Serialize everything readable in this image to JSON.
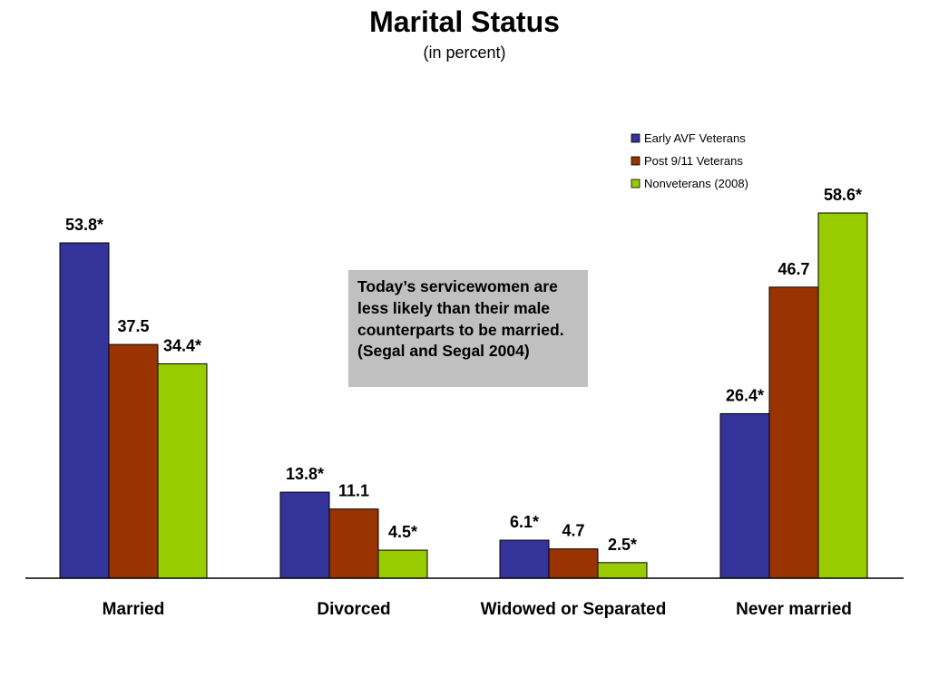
{
  "title": "Marital Status",
  "subtitle": "(in percent)",
  "callout": "Today’s servicewomen are less likely than their male counterparts to be married. (Segal and Segal 2004)",
  "chart_data": {
    "type": "bar",
    "categories": [
      "Married",
      "Divorced",
      "Widowed or Separated",
      "Never married"
    ],
    "series": [
      {
        "name": "Early AVF Veterans",
        "color": "#333399",
        "values": [
          53.8,
          13.8,
          6.1,
          26.4
        ],
        "labels": [
          "53.8*",
          "13.8*",
          "6.1*",
          "26.4*"
        ]
      },
      {
        "name": "Post 9/11 Veterans",
        "color": "#993300",
        "values": [
          37.5,
          11.1,
          4.7,
          46.7
        ],
        "labels": [
          "37.5",
          "11.1",
          "4.7",
          "46.7"
        ]
      },
      {
        "name": "Nonveterans (2008)",
        "color": "#99cc00",
        "values": [
          34.4,
          4.5,
          2.5,
          58.6
        ],
        "labels": [
          "34.4*",
          "4.5*",
          "2.5*",
          "58.6*"
        ]
      }
    ],
    "ylim": [
      0,
      58.6
    ],
    "grid": false,
    "legend_position": "top-right"
  }
}
